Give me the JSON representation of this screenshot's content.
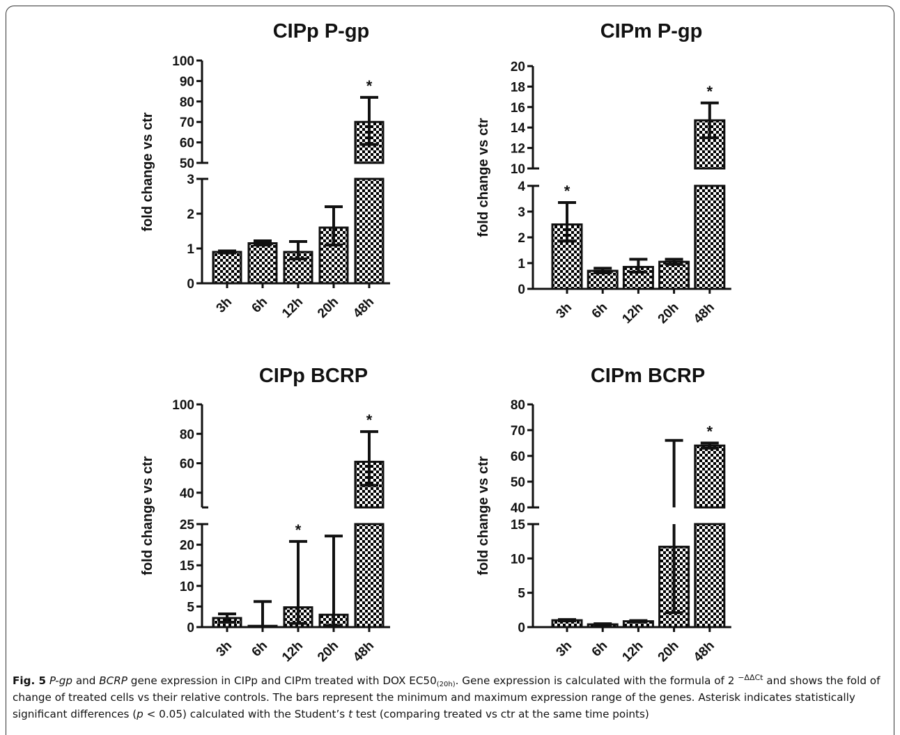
{
  "colors": {
    "bar_fill_a": "#000000",
    "bar_fill_b": "#ffffff",
    "stroke": "#111111"
  },
  "chart_data": [
    {
      "type": "bar",
      "title": "CIPp P-gp",
      "ylabel": "fold change vs ctr",
      "categories": [
        "3h",
        "6h",
        "12h",
        "20h",
        "48h"
      ],
      "values": [
        0.9,
        1.15,
        0.9,
        1.6,
        70
      ],
      "error_min": [
        0.87,
        1.1,
        0.7,
        1.1,
        59
      ],
      "error_max": [
        0.93,
        1.22,
        1.2,
        2.2,
        82
      ],
      "significant": [
        false,
        false,
        false,
        false,
        true
      ],
      "significance_marker": "*",
      "axis_break": {
        "lower_range": [
          0,
          3
        ],
        "upper_range": [
          50,
          100
        ]
      },
      "lower_ticks": [
        0,
        1,
        2,
        3
      ],
      "upper_ticks": [
        50,
        60,
        70,
        80,
        90,
        100
      ]
    },
    {
      "type": "bar",
      "title": "CIPm P-gp",
      "ylabel": "fold change vs ctr",
      "categories": [
        "3h",
        "6h",
        "12h",
        "20h",
        "48h"
      ],
      "values": [
        2.5,
        0.7,
        0.85,
        1.05,
        14.7
      ],
      "error_min": [
        1.85,
        0.62,
        0.65,
        0.95,
        13
      ],
      "error_max": [
        3.35,
        0.8,
        1.15,
        1.15,
        16.4
      ],
      "significant": [
        true,
        false,
        false,
        false,
        true
      ],
      "significance_marker": "*",
      "axis_break": {
        "lower_range": [
          0,
          4
        ],
        "upper_range": [
          10,
          20
        ]
      },
      "lower_ticks": [
        0,
        1,
        2,
        3,
        4
      ],
      "upper_ticks": [
        10,
        12,
        14,
        16,
        18,
        20
      ]
    },
    {
      "type": "bar",
      "title": "CIPp BCRP",
      "ylabel": "fold change vs ctr",
      "categories": [
        "3h",
        "6h",
        "12h",
        "20h",
        "48h"
      ],
      "values": [
        2.2,
        0.3,
        4.8,
        3.0,
        61
      ],
      "error_min": [
        1.2,
        0.1,
        0.9,
        0.4,
        45
      ],
      "error_max": [
        3.2,
        6.2,
        20.8,
        22.1,
        81.5
      ],
      "significant": [
        false,
        false,
        true,
        false,
        true
      ],
      "significance_marker": "*",
      "axis_break": {
        "lower_range": [
          0,
          25
        ],
        "upper_range": [
          30,
          100
        ]
      },
      "lower_ticks": [
        0,
        5,
        10,
        15,
        20,
        25
      ],
      "upper_ticks": [
        40,
        60,
        80,
        100
      ]
    },
    {
      "type": "bar",
      "title": "CIPm BCRP",
      "ylabel": "fold change vs ctr",
      "categories": [
        "3h",
        "6h",
        "12h",
        "20h",
        "48h"
      ],
      "values": [
        1.0,
        0.4,
        0.85,
        11.7,
        64
      ],
      "error_min": [
        0.9,
        0.3,
        0.75,
        2.1,
        63
      ],
      "error_max": [
        1.1,
        0.5,
        0.95,
        66,
        65
      ],
      "significant": [
        false,
        false,
        false,
        false,
        true
      ],
      "significance_marker": "*",
      "axis_break": {
        "lower_range": [
          0,
          15
        ],
        "upper_range": [
          40,
          80
        ]
      },
      "lower_ticks": [
        0,
        5,
        10,
        15
      ],
      "upper_ticks": [
        40,
        50,
        60,
        70,
        80
      ]
    }
  ],
  "caption": {
    "fig_label": "Fig. 5",
    "pgp": "P-gp",
    "and1": " and ",
    "bcrp": "BCRP",
    "part1": " gene expression in CIPp and CIPm treated with DOX EC50",
    "sub1": "(20h)",
    "part2": ". Gene expression is calculated with the formula of 2 ",
    "sup1": "−ΔΔCt",
    "part3": " and shows the fold of change of treated cells vs their relative controls. The bars represent the minimum and maximum expression range of the genes. Asterisk indicates statistically significant differences (",
    "p_letter": "p",
    "part4": " < 0.05) calculated with the Student’s ",
    "t_letter": "t",
    "part5": " test (comparing treated vs ctr at the same time points)"
  }
}
